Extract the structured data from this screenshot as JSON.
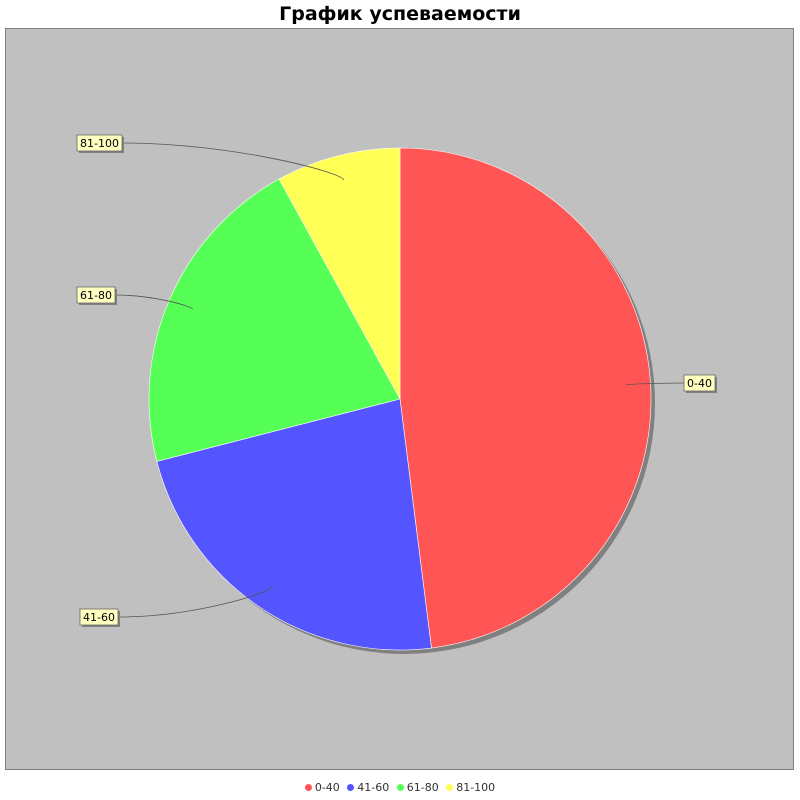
{
  "chart_data": {
    "type": "pie",
    "title": "График успеваемости",
    "categories": [
      "0-40",
      "41-60",
      "61-80",
      "81-100"
    ],
    "values": [
      48,
      23,
      21,
      8
    ],
    "colors": [
      "#FF5555",
      "#5555FF",
      "#55FF55",
      "#FFFF55"
    ],
    "background_color": "#C0C0C0",
    "legend_position": "bottom",
    "slice_labels": [
      "0-40",
      "41-60",
      "61-80",
      "81-100"
    ]
  },
  "legend": {
    "items": [
      {
        "label": "0-40",
        "color": "#FF5555"
      },
      {
        "label": "41-60",
        "color": "#5555FF"
      },
      {
        "label": "61-80",
        "color": "#55FF55"
      },
      {
        "label": "81-100",
        "color": "#FFFF55"
      }
    ]
  }
}
